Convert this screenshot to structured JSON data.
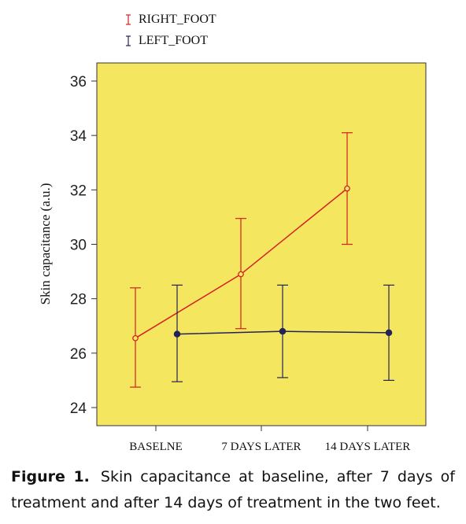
{
  "chart_data": {
    "type": "line",
    "categories": [
      "BASELNE",
      "7 DAYS LATER",
      "14 DAYS LATER"
    ],
    "ylabel": "Skin capacitance (a.u.)",
    "xlabel": "",
    "ylim": [
      23.5,
      36.6
    ],
    "yticks": [
      24,
      26,
      28,
      30,
      32,
      34,
      36
    ],
    "legend_position": "top-left, above plot",
    "plot_background": "#f5e660",
    "series": [
      {
        "name": "RIGHT_FOOT",
        "color": "#d42020",
        "marker": "open-circle",
        "values": [
          26.55,
          28.9,
          32.05
        ],
        "error_low": [
          24.75,
          26.9,
          30.0
        ],
        "error_high": [
          28.4,
          30.95,
          34.1
        ]
      },
      {
        "name": "LEFT_FOOT",
        "color": "#232358",
        "marker": "filled-circle",
        "values": [
          26.7,
          26.8,
          26.75
        ],
        "error_low": [
          24.95,
          25.1,
          25.0
        ],
        "error_high": [
          28.5,
          28.5,
          28.5
        ]
      }
    ]
  },
  "caption": {
    "label": "Figure 1.",
    "text": "Skin capacitance at baseline, after 7 days of treatment and after 14 days of treatment in the two feet."
  }
}
